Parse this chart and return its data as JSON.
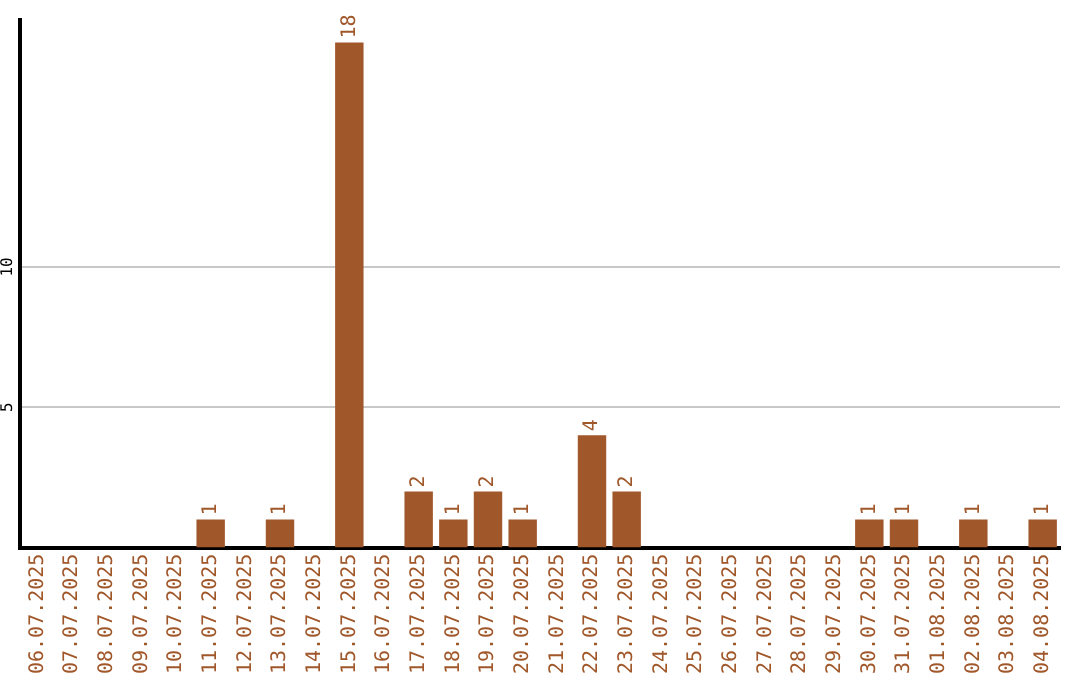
{
  "chart_data": {
    "type": "bar",
    "categories": [
      "06.07.2025",
      "07.07.2025",
      "08.07.2025",
      "09.07.2025",
      "10.07.2025",
      "11.07.2025",
      "12.07.2025",
      "13.07.2025",
      "14.07.2025",
      "15.07.2025",
      "16.07.2025",
      "17.07.2025",
      "18.07.2025",
      "19.07.2025",
      "20.07.2025",
      "21.07.2025",
      "22.07.2025",
      "23.07.2025",
      "24.07.2025",
      "25.07.2025",
      "26.07.2025",
      "27.07.2025",
      "28.07.2025",
      "29.07.2025",
      "30.07.2025",
      "31.07.2025",
      "01.08.2025",
      "02.08.2025",
      "03.08.2025",
      "04.08.2025"
    ],
    "values": [
      0,
      0,
      0,
      0,
      0,
      1,
      0,
      1,
      0,
      18,
      0,
      2,
      1,
      2,
      1,
      0,
      4,
      2,
      0,
      0,
      0,
      0,
      0,
      0,
      1,
      1,
      0,
      1,
      0,
      1
    ],
    "value_labels": [
      null,
      null,
      null,
      null,
      null,
      "1",
      null,
      "1",
      null,
      "18",
      null,
      "2",
      "1",
      "2",
      "1",
      null,
      "4",
      "2",
      null,
      null,
      null,
      null,
      null,
      null,
      "1",
      "1",
      null,
      "1",
      null,
      "1"
    ],
    "color": "#a0572a",
    "ylim": [
      0,
      18.8
    ],
    "yticks": [
      5,
      10
    ],
    "grid": "y"
  }
}
